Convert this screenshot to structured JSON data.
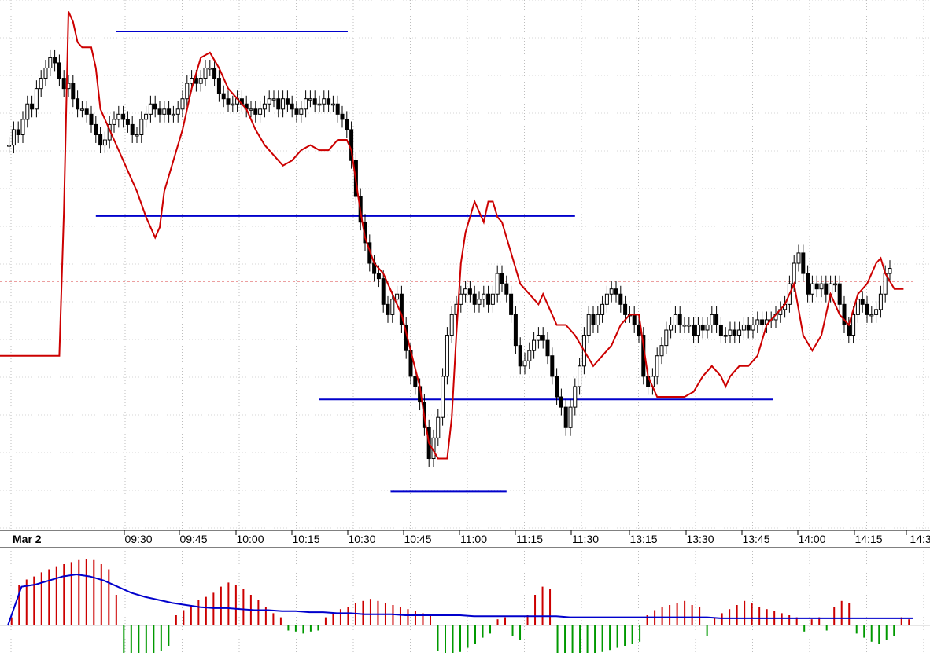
{
  "chart_data": {
    "type": "candlestick",
    "date_label": "Mar 2",
    "x_tick_labels": [
      "09:30",
      "09:45",
      "10:00",
      "10:15",
      "10:30",
      "10:45",
      "11:00",
      "11:15",
      "11:30",
      "13:15",
      "13:30",
      "13:45",
      "14:00",
      "14:15",
      "14:3"
    ],
    "price_axis": {
      "ylim": [
        0,
        100
      ],
      "note": "no price labels visible; values are relative (0 = bottom, 100 = top of price pane)"
    },
    "grid": {
      "vertical": true,
      "horizontal": true,
      "style": "dotted"
    },
    "reference_line_dashed": {
      "value": 46.5,
      "color": "#cc0000"
    },
    "horizontal_levels": [
      {
        "value": 95.1,
        "x_start": 12.7,
        "x_end": 38.1
      },
      {
        "value": 59.2,
        "x_start": 10.5,
        "x_end": 63.0
      },
      {
        "value": 23.5,
        "x_start": 35.0,
        "x_end": 84.7
      },
      {
        "value": 5.6,
        "x_start": 42.8,
        "x_end": 55.5
      }
    ],
    "candles": [
      {
        "x": 1.0,
        "y": 73.0
      },
      {
        "x": 1.5,
        "y": 76.0
      },
      {
        "x": 2.0,
        "y": 75.0
      },
      {
        "x": 2.5,
        "y": 78.0
      },
      {
        "x": 3.0,
        "y": 81.0
      },
      {
        "x": 3.5,
        "y": 80.0
      },
      {
        "x": 4.0,
        "y": 84.0
      },
      {
        "x": 4.5,
        "y": 86.0
      },
      {
        "x": 5.0,
        "y": 88.0
      },
      {
        "x": 5.5,
        "y": 90.0
      },
      {
        "x": 6.0,
        "y": 89.0
      },
      {
        "x": 6.5,
        "y": 86.0
      },
      {
        "x": 7.0,
        "y": 84.0
      },
      {
        "x": 7.5,
        "y": 85.0
      },
      {
        "x": 8.0,
        "y": 82.0
      },
      {
        "x": 8.5,
        "y": 80.0
      },
      {
        "x": 9.0,
        "y": 80.0
      },
      {
        "x": 9.5,
        "y": 79.0
      },
      {
        "x": 10.0,
        "y": 77.0
      },
      {
        "x": 10.5,
        "y": 75.0
      },
      {
        "x": 11.0,
        "y": 73.0
      },
      {
        "x": 11.5,
        "y": 74.0
      },
      {
        "x": 12.0,
        "y": 77.0
      },
      {
        "x": 12.5,
        "y": 78.0
      },
      {
        "x": 13.0,
        "y": 79.0
      },
      {
        "x": 13.5,
        "y": 78.0
      },
      {
        "x": 14.0,
        "y": 77.0
      },
      {
        "x": 14.5,
        "y": 75.0
      },
      {
        "x": 15.0,
        "y": 75.0
      },
      {
        "x": 15.5,
        "y": 78.0
      },
      {
        "x": 16.0,
        "y": 79.0
      },
      {
        "x": 16.5,
        "y": 81.0
      },
      {
        "x": 17.0,
        "y": 80.0
      },
      {
        "x": 17.5,
        "y": 79.0
      },
      {
        "x": 18.0,
        "y": 80.0
      },
      {
        "x": 18.5,
        "y": 79.0
      },
      {
        "x": 19.0,
        "y": 79.0
      },
      {
        "x": 19.5,
        "y": 80.0
      },
      {
        "x": 20.0,
        "y": 82.0
      },
      {
        "x": 20.5,
        "y": 85.0
      },
      {
        "x": 21.0,
        "y": 86.0
      },
      {
        "x": 21.5,
        "y": 85.0
      },
      {
        "x": 22.0,
        "y": 86.0
      },
      {
        "x": 22.5,
        "y": 88.0
      },
      {
        "x": 23.0,
        "y": 88.0
      },
      {
        "x": 23.5,
        "y": 86.0
      },
      {
        "x": 24.0,
        "y": 83.0
      },
      {
        "x": 24.5,
        "y": 82.0
      },
      {
        "x": 25.0,
        "y": 81.0
      },
      {
        "x": 25.5,
        "y": 81.0
      },
      {
        "x": 26.0,
        "y": 82.0
      },
      {
        "x": 26.5,
        "y": 81.0
      },
      {
        "x": 27.0,
        "y": 80.0
      },
      {
        "x": 27.5,
        "y": 80.0
      },
      {
        "x": 28.0,
        "y": 79.0
      },
      {
        "x": 28.5,
        "y": 80.0
      },
      {
        "x": 29.0,
        "y": 81.0
      },
      {
        "x": 29.5,
        "y": 82.0
      },
      {
        "x": 30.0,
        "y": 82.0
      },
      {
        "x": 30.5,
        "y": 80.0
      },
      {
        "x": 31.0,
        "y": 82.0
      },
      {
        "x": 31.5,
        "y": 81.0
      },
      {
        "x": 32.0,
        "y": 80.0
      },
      {
        "x": 32.5,
        "y": 79.0
      },
      {
        "x": 33.0,
        "y": 80.0
      },
      {
        "x": 33.5,
        "y": 82.0
      },
      {
        "x": 34.0,
        "y": 82.0
      },
      {
        "x": 34.5,
        "y": 81.0
      },
      {
        "x": 35.0,
        "y": 81.0
      },
      {
        "x": 35.5,
        "y": 82.0
      },
      {
        "x": 36.0,
        "y": 81.0
      },
      {
        "x": 36.5,
        "y": 81.0
      },
      {
        "x": 37.0,
        "y": 79.0
      },
      {
        "x": 37.5,
        "y": 78.0
      },
      {
        "x": 38.0,
        "y": 76.0
      },
      {
        "x": 38.5,
        "y": 70.0
      },
      {
        "x": 39.0,
        "y": 63.0
      },
      {
        "x": 39.5,
        "y": 58.0
      },
      {
        "x": 40.0,
        "y": 54.0
      },
      {
        "x": 40.5,
        "y": 50.0
      },
      {
        "x": 41.0,
        "y": 48.0
      },
      {
        "x": 41.5,
        "y": 47.0
      },
      {
        "x": 42.0,
        "y": 42.0
      },
      {
        "x": 42.5,
        "y": 40.0
      },
      {
        "x": 43.0,
        "y": 43.0
      },
      {
        "x": 43.5,
        "y": 44.0
      },
      {
        "x": 44.0,
        "y": 38.0
      },
      {
        "x": 44.5,
        "y": 33.0
      },
      {
        "x": 45.0,
        "y": 28.0
      },
      {
        "x": 45.5,
        "y": 26.0
      },
      {
        "x": 46.0,
        "y": 23.0
      },
      {
        "x": 46.5,
        "y": 18.0
      },
      {
        "x": 47.0,
        "y": 12.0
      },
      {
        "x": 47.5,
        "y": 16.0
      },
      {
        "x": 48.0,
        "y": 20.0
      },
      {
        "x": 48.5,
        "y": 28.0
      },
      {
        "x": 49.0,
        "y": 36.0
      },
      {
        "x": 49.5,
        "y": 40.0
      },
      {
        "x": 50.0,
        "y": 42.0
      },
      {
        "x": 50.5,
        "y": 44.0
      },
      {
        "x": 51.0,
        "y": 45.0
      },
      {
        "x": 51.5,
        "y": 44.0
      },
      {
        "x": 52.0,
        "y": 42.0
      },
      {
        "x": 52.5,
        "y": 43.0
      },
      {
        "x": 53.0,
        "y": 44.0
      },
      {
        "x": 53.5,
        "y": 42.0
      },
      {
        "x": 54.0,
        "y": 44.0
      },
      {
        "x": 54.5,
        "y": 48.0
      },
      {
        "x": 55.0,
        "y": 46.0
      },
      {
        "x": 55.5,
        "y": 44.0
      },
      {
        "x": 56.0,
        "y": 40.0
      },
      {
        "x": 56.5,
        "y": 34.0
      },
      {
        "x": 57.0,
        "y": 30.0
      },
      {
        "x": 57.5,
        "y": 31.0
      },
      {
        "x": 58.0,
        "y": 33.0
      },
      {
        "x": 58.5,
        "y": 35.0
      },
      {
        "x": 59.0,
        "y": 36.0
      },
      {
        "x": 59.5,
        "y": 35.0
      },
      {
        "x": 60.0,
        "y": 32.0
      },
      {
        "x": 60.5,
        "y": 28.0
      },
      {
        "x": 61.0,
        "y": 24.0
      },
      {
        "x": 61.5,
        "y": 22.0
      },
      {
        "x": 62.0,
        "y": 18.0
      },
      {
        "x": 62.5,
        "y": 22.0
      },
      {
        "x": 63.0,
        "y": 26.0
      },
      {
        "x": 63.5,
        "y": 30.0
      },
      {
        "x": 64.0,
        "y": 36.0
      },
      {
        "x": 64.5,
        "y": 40.0
      },
      {
        "x": 65.0,
        "y": 38.0
      },
      {
        "x": 65.5,
        "y": 40.0
      },
      {
        "x": 66.0,
        "y": 42.0
      },
      {
        "x": 66.5,
        "y": 44.0
      },
      {
        "x": 67.0,
        "y": 45.0
      },
      {
        "x": 67.5,
        "y": 44.0
      },
      {
        "x": 68.0,
        "y": 42.0
      },
      {
        "x": 68.5,
        "y": 40.0
      },
      {
        "x": 69.0,
        "y": 40.0
      },
      {
        "x": 69.5,
        "y": 38.0
      },
      {
        "x": 70.0,
        "y": 36.0
      },
      {
        "x": 70.5,
        "y": 28.0
      },
      {
        "x": 71.0,
        "y": 26.0
      },
      {
        "x": 71.5,
        "y": 28.0
      },
      {
        "x": 72.0,
        "y": 32.0
      },
      {
        "x": 72.5,
        "y": 34.0
      },
      {
        "x": 73.0,
        "y": 37.0
      },
      {
        "x": 73.5,
        "y": 38.0
      },
      {
        "x": 74.0,
        "y": 40.0
      },
      {
        "x": 74.5,
        "y": 38.0
      },
      {
        "x": 75.0,
        "y": 38.0
      },
      {
        "x": 75.5,
        "y": 38.0
      },
      {
        "x": 76.0,
        "y": 36.0
      },
      {
        "x": 76.5,
        "y": 38.0
      },
      {
        "x": 77.0,
        "y": 37.0
      },
      {
        "x": 77.5,
        "y": 38.0
      },
      {
        "x": 78.0,
        "y": 40.0
      },
      {
        "x": 78.5,
        "y": 38.0
      },
      {
        "x": 79.0,
        "y": 36.0
      },
      {
        "x": 79.5,
        "y": 36.0
      },
      {
        "x": 80.0,
        "y": 37.0
      },
      {
        "x": 80.5,
        "y": 36.0
      },
      {
        "x": 81.0,
        "y": 37.0
      },
      {
        "x": 81.5,
        "y": 38.0
      },
      {
        "x": 82.0,
        "y": 37.0
      },
      {
        "x": 82.5,
        "y": 38.0
      },
      {
        "x": 83.0,
        "y": 39.0
      },
      {
        "x": 83.5,
        "y": 38.0
      },
      {
        "x": 84.0,
        "y": 39.0
      },
      {
        "x": 84.5,
        "y": 39.0
      },
      {
        "x": 85.0,
        "y": 40.0
      },
      {
        "x": 85.5,
        "y": 41.0
      },
      {
        "x": 86.0,
        "y": 42.0
      },
      {
        "x": 86.5,
        "y": 46.0
      },
      {
        "x": 87.0,
        "y": 50.0
      },
      {
        "x": 87.5,
        "y": 52.0
      },
      {
        "x": 88.0,
        "y": 48.0
      },
      {
        "x": 88.5,
        "y": 44.0
      },
      {
        "x": 89.0,
        "y": 46.0
      },
      {
        "x": 89.5,
        "y": 45.0
      },
      {
        "x": 90.0,
        "y": 46.0
      },
      {
        "x": 90.5,
        "y": 44.0
      },
      {
        "x": 91.0,
        "y": 46.0
      },
      {
        "x": 91.5,
        "y": 46.0
      },
      {
        "x": 92.0,
        "y": 42.0
      },
      {
        "x": 92.5,
        "y": 38.0
      },
      {
        "x": 93.0,
        "y": 36.0
      },
      {
        "x": 93.5,
        "y": 40.0
      },
      {
        "x": 94.0,
        "y": 43.0
      },
      {
        "x": 94.5,
        "y": 42.0
      },
      {
        "x": 95.0,
        "y": 40.0
      },
      {
        "x": 95.5,
        "y": 40.0
      },
      {
        "x": 96.0,
        "y": 41.0
      },
      {
        "x": 96.5,
        "y": 44.0
      },
      {
        "x": 97.0,
        "y": 48.0
      },
      {
        "x": 97.5,
        "y": 49.0
      }
    ],
    "red_line": {
      "color": "#cc0000",
      "points": [
        [
          0.0,
          32.0
        ],
        [
          6.5,
          32.0
        ],
        [
          7.0,
          60.0
        ],
        [
          7.5,
          99.0
        ],
        [
          8.0,
          97.0
        ],
        [
          8.5,
          93.0
        ],
        [
          9.0,
          92.0
        ],
        [
          10.0,
          92.0
        ],
        [
          10.5,
          88.0
        ],
        [
          11.0,
          80.0
        ],
        [
          12.0,
          76.0
        ],
        [
          13.0,
          72.0
        ],
        [
          14.0,
          68.0
        ],
        [
          15.0,
          64.0
        ],
        [
          16.0,
          59.0
        ],
        [
          17.0,
          55.0
        ],
        [
          17.5,
          57.0
        ],
        [
          18.0,
          64.0
        ],
        [
          19.0,
          70.0
        ],
        [
          20.0,
          76.0
        ],
        [
          21.0,
          84.0
        ],
        [
          22.0,
          90.0
        ],
        [
          23.0,
          91.0
        ],
        [
          24.0,
          88.0
        ],
        [
          25.0,
          84.0
        ],
        [
          26.0,
          82.0
        ],
        [
          27.0,
          80.0
        ],
        [
          28.0,
          76.0
        ],
        [
          29.0,
          73.0
        ],
        [
          30.0,
          71.0
        ],
        [
          31.0,
          69.0
        ],
        [
          32.0,
          70.0
        ],
        [
          33.0,
          72.0
        ],
        [
          34.0,
          73.0
        ],
        [
          35.0,
          72.0
        ],
        [
          36.0,
          72.0
        ],
        [
          37.0,
          74.0
        ],
        [
          38.0,
          74.0
        ],
        [
          38.5,
          72.0
        ],
        [
          39.0,
          66.0
        ],
        [
          39.5,
          60.0
        ],
        [
          40.0,
          55.0
        ],
        [
          41.0,
          50.0
        ],
        [
          42.0,
          48.0
        ],
        [
          43.0,
          44.0
        ],
        [
          44.0,
          40.0
        ],
        [
          45.0,
          33.0
        ],
        [
          46.0,
          26.0
        ],
        [
          46.5,
          20.0
        ],
        [
          47.0,
          15.0
        ],
        [
          48.0,
          12.0
        ],
        [
          49.0,
          12.0
        ],
        [
          49.5,
          20.0
        ],
        [
          50.0,
          36.0
        ],
        [
          50.5,
          50.0
        ],
        [
          51.0,
          56.0
        ],
        [
          51.5,
          59.0
        ],
        [
          52.0,
          62.0
        ],
        [
          52.5,
          60.0
        ],
        [
          53.0,
          58.0
        ],
        [
          53.5,
          62.0
        ],
        [
          54.0,
          62.0
        ],
        [
          54.5,
          59.0
        ],
        [
          55.0,
          58.0
        ],
        [
          55.5,
          55.0
        ],
        [
          56.0,
          52.0
        ],
        [
          57.0,
          46.0
        ],
        [
          58.0,
          44.0
        ],
        [
          59.0,
          42.0
        ],
        [
          59.5,
          44.0
        ],
        [
          60.0,
          42.0
        ],
        [
          61.0,
          38.0
        ],
        [
          62.0,
          38.0
        ],
        [
          63.0,
          36.0
        ],
        [
          64.0,
          33.0
        ],
        [
          65.0,
          30.0
        ],
        [
          66.0,
          32.0
        ],
        [
          67.0,
          34.0
        ],
        [
          68.0,
          38.0
        ],
        [
          69.0,
          40.0
        ],
        [
          70.0,
          40.0
        ],
        [
          71.0,
          28.0
        ],
        [
          72.0,
          24.0
        ],
        [
          73.0,
          24.0
        ],
        [
          74.0,
          24.0
        ],
        [
          75.0,
          24.0
        ],
        [
          76.0,
          25.0
        ],
        [
          77.0,
          28.0
        ],
        [
          78.0,
          30.0
        ],
        [
          79.0,
          28.0
        ],
        [
          79.5,
          26.0
        ],
        [
          80.0,
          28.0
        ],
        [
          81.0,
          30.0
        ],
        [
          82.0,
          30.0
        ],
        [
          83.0,
          32.0
        ],
        [
          84.0,
          38.0
        ],
        [
          85.0,
          40.0
        ],
        [
          86.0,
          42.0
        ],
        [
          87.0,
          46.0
        ],
        [
          88.0,
          36.0
        ],
        [
          89.0,
          33.0
        ],
        [
          90.0,
          36.0
        ],
        [
          91.0,
          44.0
        ],
        [
          92.0,
          40.0
        ],
        [
          93.0,
          38.0
        ],
        [
          94.0,
          44.0
        ],
        [
          95.0,
          46.0
        ],
        [
          96.0,
          50.0
        ],
        [
          96.5,
          51.0
        ],
        [
          97.0,
          48.0
        ],
        [
          98.0,
          45.0
        ],
        [
          99.0,
          45.0
        ]
      ]
    },
    "volume": {
      "zero_line": 0,
      "colors": {
        "up": "#cc0000",
        "down": "#009900",
        "average": "#0000cc"
      },
      "bars": [
        8,
        40,
        45,
        48,
        52,
        55,
        58,
        60,
        62,
        64,
        65,
        64,
        60,
        55,
        30,
        -38,
        -40,
        -35,
        -32,
        -30,
        -25,
        -20,
        10,
        15,
        20,
        25,
        28,
        32,
        38,
        42,
        40,
        36,
        30,
        25,
        18,
        12,
        8,
        -5,
        -6,
        -8,
        -6,
        -5,
        8,
        12,
        16,
        18,
        22,
        24,
        26,
        24,
        22,
        20,
        18,
        16,
        14,
        12,
        10,
        -25,
        -30,
        -28,
        -26,
        -22,
        -18,
        -12,
        -8,
        6,
        8,
        -10,
        -14,
        10,
        30,
        38,
        36,
        -30,
        -32,
        -35,
        -34,
        -30,
        -28,
        -26,
        -24,
        -22,
        -20,
        -18,
        -16,
        10,
        15,
        18,
        20,
        22,
        24,
        20,
        18,
        -10,
        8,
        12,
        16,
        20,
        24,
        22,
        18,
        16,
        14,
        12,
        10,
        8,
        -6,
        6,
        8,
        -5,
        18,
        24,
        22,
        -8,
        -12,
        -16,
        -18,
        -14,
        -10,
        8,
        6
      ],
      "average_line": [
        0,
        38,
        40,
        44,
        48,
        50,
        48,
        44,
        38,
        32,
        28,
        25,
        22,
        20,
        18,
        17,
        17,
        16,
        15,
        15,
        14,
        14,
        13,
        13,
        12,
        12,
        11,
        11,
        11,
        10,
        10,
        10,
        10,
        10,
        9,
        9,
        9,
        9,
        9,
        9,
        9,
        8,
        8,
        8,
        8,
        8,
        8,
        8,
        8,
        8,
        8,
        8,
        7,
        7,
        7,
        7,
        7,
        7,
        7,
        7,
        7,
        7,
        7,
        7,
        7,
        7,
        7
      ]
    }
  }
}
